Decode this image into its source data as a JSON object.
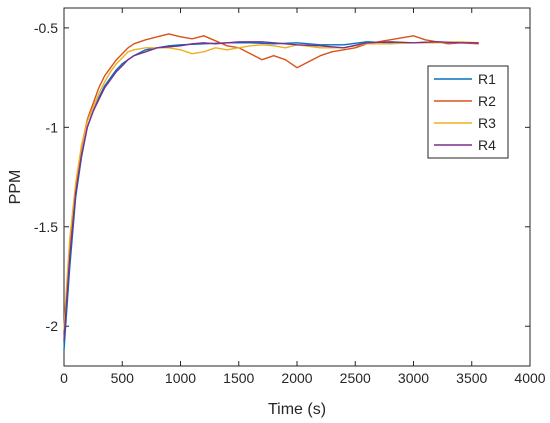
{
  "chart_data": {
    "type": "line",
    "title": "",
    "xlabel": "Time (s)",
    "ylabel": "PPM",
    "xlim": [
      0,
      4000
    ],
    "ylim": [
      -2.2,
      -0.4
    ],
    "xticks": [
      0,
      500,
      1000,
      1500,
      2000,
      2500,
      3000,
      3500,
      4000
    ],
    "yticks": [
      -2,
      -1.5,
      -1,
      -0.5
    ],
    "xtick_labels": [
      "0",
      "500",
      "1000",
      "1500",
      "2000",
      "2500",
      "3000",
      "3500",
      "4000"
    ],
    "ytick_labels": [
      "-2",
      "-1.5",
      "-1",
      "-0.5"
    ],
    "grid": false,
    "legend_position": "right",
    "series": [
      {
        "name": "R1",
        "color": "#0072BD",
        "x": [
          0,
          20,
          50,
          100,
          150,
          200,
          250,
          300,
          350,
          400,
          450,
          500,
          550,
          600,
          700,
          800,
          900,
          1000,
          1200,
          1400,
          1600,
          1800,
          2000,
          2200,
          2400,
          2600,
          2800,
          3000,
          3200,
          3400,
          3560
        ],
        "y": [
          -2.12,
          -1.95,
          -1.7,
          -1.35,
          -1.15,
          -1.0,
          -0.92,
          -0.85,
          -0.79,
          -0.75,
          -0.71,
          -0.68,
          -0.66,
          -0.64,
          -0.61,
          -0.6,
          -0.59,
          -0.585,
          -0.58,
          -0.575,
          -0.575,
          -0.58,
          -0.575,
          -0.585,
          -0.585,
          -0.57,
          -0.575,
          -0.575,
          -0.57,
          -0.575,
          -0.575
        ]
      },
      {
        "name": "R2",
        "color": "#D95319",
        "x": [
          0,
          20,
          50,
          100,
          150,
          200,
          250,
          300,
          350,
          400,
          450,
          500,
          550,
          600,
          700,
          800,
          900,
          1000,
          1100,
          1200,
          1300,
          1400,
          1500,
          1600,
          1700,
          1800,
          1900,
          2000,
          2100,
          2200,
          2300,
          2400,
          2500,
          2600,
          2700,
          2800,
          2900,
          3000,
          3100,
          3200,
          3300,
          3400,
          3560
        ],
        "y": [
          -2.03,
          -1.85,
          -1.6,
          -1.3,
          -1.1,
          -0.96,
          -0.88,
          -0.8,
          -0.74,
          -0.7,
          -0.66,
          -0.63,
          -0.6,
          -0.58,
          -0.56,
          -0.545,
          -0.53,
          -0.545,
          -0.555,
          -0.54,
          -0.565,
          -0.59,
          -0.6,
          -0.63,
          -0.66,
          -0.64,
          -0.66,
          -0.7,
          -0.67,
          -0.64,
          -0.62,
          -0.61,
          -0.6,
          -0.58,
          -0.57,
          -0.56,
          -0.55,
          -0.54,
          -0.56,
          -0.57,
          -0.58,
          -0.575,
          -0.58
        ]
      },
      {
        "name": "R3",
        "color": "#EDB120",
        "x": [
          0,
          20,
          50,
          100,
          150,
          200,
          250,
          300,
          350,
          400,
          450,
          500,
          550,
          600,
          700,
          800,
          900,
          1000,
          1100,
          1200,
          1300,
          1400,
          1500,
          1600,
          1700,
          1800,
          1900,
          2000,
          2200,
          2400,
          2600,
          2800,
          3000,
          3200,
          3400,
          3560
        ],
        "y": [
          -2.02,
          -1.82,
          -1.56,
          -1.28,
          -1.09,
          -0.97,
          -0.9,
          -0.83,
          -0.77,
          -0.72,
          -0.68,
          -0.65,
          -0.62,
          -0.61,
          -0.6,
          -0.6,
          -0.6,
          -0.61,
          -0.63,
          -0.62,
          -0.6,
          -0.61,
          -0.6,
          -0.59,
          -0.585,
          -0.59,
          -0.6,
          -0.585,
          -0.6,
          -0.6,
          -0.58,
          -0.58,
          -0.575,
          -0.575,
          -0.57,
          -0.575
        ]
      },
      {
        "name": "R4",
        "color": "#7E2F8E",
        "x": [
          0,
          20,
          50,
          100,
          150,
          200,
          250,
          300,
          350,
          400,
          450,
          500,
          550,
          600,
          700,
          800,
          900,
          1000,
          1100,
          1200,
          1300,
          1400,
          1500,
          1600,
          1700,
          1800,
          1900,
          2000,
          2200,
          2400,
          2600,
          2800,
          3000,
          3200,
          3400,
          3560
        ],
        "y": [
          -2.07,
          -1.9,
          -1.65,
          -1.33,
          -1.14,
          -1.0,
          -0.92,
          -0.86,
          -0.8,
          -0.76,
          -0.72,
          -0.69,
          -0.66,
          -0.64,
          -0.62,
          -0.6,
          -0.595,
          -0.59,
          -0.58,
          -0.575,
          -0.58,
          -0.575,
          -0.57,
          -0.57,
          -0.57,
          -0.575,
          -0.58,
          -0.585,
          -0.59,
          -0.6,
          -0.575,
          -0.57,
          -0.575,
          -0.57,
          -0.575,
          -0.575
        ]
      }
    ]
  }
}
